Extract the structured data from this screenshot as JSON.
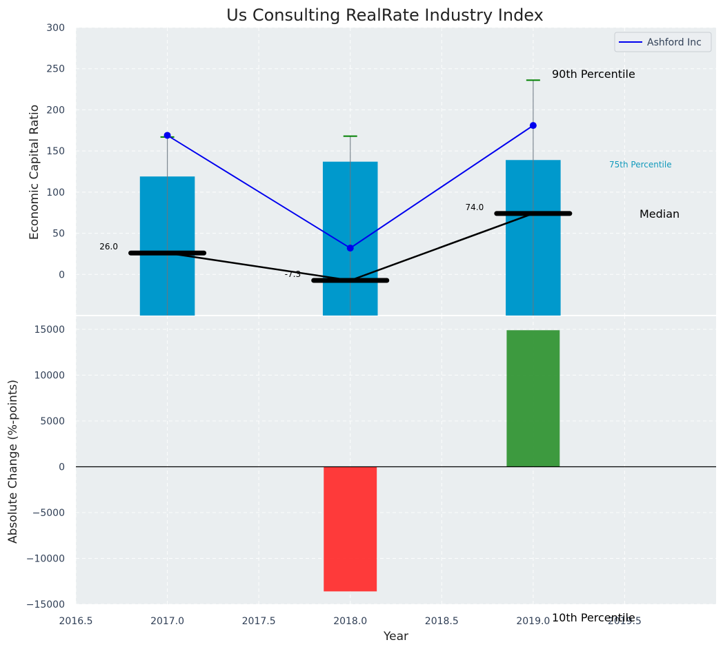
{
  "chart_data": [
    {
      "type": "bar",
      "title": "Us Consulting RealRate Industry Index",
      "ylabel": "Economic Capital Ratio",
      "xlim": [
        2016.5,
        2020.0
      ],
      "ylim": [
        -50,
        300
      ],
      "yticks": [
        0,
        50,
        100,
        150,
        200,
        250,
        300
      ],
      "grid": true,
      "colors": {
        "bar": "#0099cc",
        "line": "#0000ee",
        "median": "#000000",
        "whisker": "#008000",
        "percentile75": "#1199bb"
      },
      "categories": [
        2017,
        2018,
        2019
      ],
      "bars_75th_percentile": [
        119,
        137,
        139
      ],
      "percentile_90": [
        167,
        168,
        236
      ],
      "series": [
        {
          "name": "Ashford Inc",
          "x": [
            2017,
            2018,
            2019
          ],
          "values": [
            169,
            32,
            181
          ]
        }
      ],
      "median": [
        26.0,
        -7.3,
        74.0
      ],
      "median_labels": [
        "26.0",
        "-7.3",
        "74.0"
      ],
      "legend": {
        "position": "upper right",
        "entries": [
          "Ashford Inc"
        ]
      },
      "annotations": {
        "p90": "90th Percentile",
        "p75": "75th Percentile",
        "median": "Median",
        "p10": "10th Percentile"
      }
    },
    {
      "type": "bar",
      "xlabel": "Year",
      "ylabel": "Absolute Change (%-points)",
      "xlim": [
        2016.5,
        2020.0
      ],
      "ylim": [
        -15000,
        16500
      ],
      "xticks": [
        2016.5,
        2017.0,
        2017.5,
        2018.0,
        2018.5,
        2019.0,
        2019.5
      ],
      "xtick_labels": [
        "2016.5",
        "2017.0",
        "2017.5",
        "2018.0",
        "2018.5",
        "2019.0",
        "2019.5"
      ],
      "yticks": [
        -15000,
        -10000,
        -5000,
        0,
        5000,
        10000,
        15000
      ],
      "ytick_labels": [
        "−15000",
        "−10000",
        "−5000",
        "0",
        "5000",
        "10000",
        "15000"
      ],
      "grid": true,
      "colors": {
        "positive": "#2e9230",
        "negative": "#ff2a2a",
        "zero_line": "#000000"
      },
      "categories": [
        2018,
        2019
      ],
      "values": [
        -13600,
        14900
      ]
    }
  ]
}
